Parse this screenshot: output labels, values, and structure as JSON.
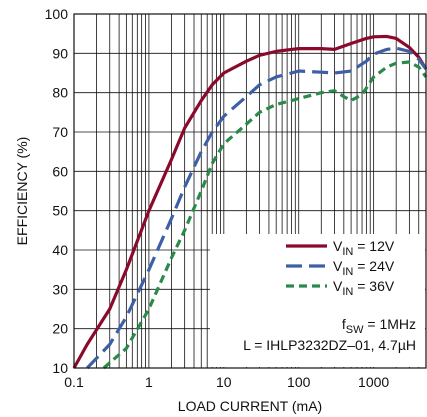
{
  "chart_data": {
    "type": "line",
    "title": "",
    "xlabel": "LOAD CURRENT (mA)",
    "ylabel": "EFFICIENCY (%)",
    "xscale": "log",
    "xlim": [
      0.1,
      5000
    ],
    "ylim": [
      10,
      100
    ],
    "grid": true,
    "legend_position": "lower-right",
    "x_ticks": [
      {
        "value": 0.1,
        "label": "0.1"
      },
      {
        "value": 1,
        "label": "1"
      },
      {
        "value": 10,
        "label": "10"
      },
      {
        "value": 100,
        "label": "100"
      },
      {
        "value": 1000,
        "label": "1000"
      }
    ],
    "y_ticks": [
      {
        "value": 10,
        "label": "10"
      },
      {
        "value": 20,
        "label": "20"
      },
      {
        "value": 30,
        "label": "30"
      },
      {
        "value": 40,
        "label": "40"
      },
      {
        "value": 50,
        "label": "50"
      },
      {
        "value": 60,
        "label": "60"
      },
      {
        "value": 70,
        "label": "70"
      },
      {
        "value": 80,
        "label": "80"
      },
      {
        "value": 90,
        "label": "90"
      },
      {
        "value": 100,
        "label": "100"
      }
    ],
    "series": [
      {
        "name": "VIN = 12V",
        "legend_main": "V",
        "legend_sub": "IN",
        "legend_rest": " = 12V",
        "color": "#8b0a2b",
        "dash": "solid",
        "points": [
          [
            0.1,
            10
          ],
          [
            0.15,
            16
          ],
          [
            0.3,
            25
          ],
          [
            0.5,
            35
          ],
          [
            1,
            50
          ],
          [
            2,
            63
          ],
          [
            3,
            71
          ],
          [
            5,
            78
          ],
          [
            7,
            82
          ],
          [
            10,
            85
          ],
          [
            20,
            88
          ],
          [
            30,
            89.5
          ],
          [
            50,
            90.5
          ],
          [
            80,
            91
          ],
          [
            100,
            91.2
          ],
          [
            200,
            91.2
          ],
          [
            300,
            91
          ],
          [
            500,
            92.5
          ],
          [
            800,
            93.8
          ],
          [
            1000,
            94.2
          ],
          [
            1500,
            94.3
          ],
          [
            2000,
            93.8
          ],
          [
            3000,
            91.5
          ],
          [
            4000,
            89
          ],
          [
            5000,
            86
          ]
        ]
      },
      {
        "name": "VIN = 24V",
        "legend_main": "V",
        "legend_sub": "IN",
        "legend_rest": " = 24V",
        "color": "#3d5fa6",
        "dash": "long-dash",
        "points": [
          [
            0.15,
            10
          ],
          [
            0.3,
            16
          ],
          [
            0.5,
            23
          ],
          [
            1,
            35
          ],
          [
            2,
            48
          ],
          [
            3,
            56
          ],
          [
            5,
            65
          ],
          [
            7,
            70
          ],
          [
            10,
            74
          ],
          [
            20,
            79
          ],
          [
            30,
            82
          ],
          [
            50,
            84
          ],
          [
            80,
            85
          ],
          [
            100,
            85.5
          ],
          [
            200,
            85.2
          ],
          [
            300,
            85
          ],
          [
            500,
            85.5
          ],
          [
            800,
            88
          ],
          [
            1000,
            89.8
          ],
          [
            1500,
            91
          ],
          [
            2000,
            91.3
          ],
          [
            3000,
            90.5
          ],
          [
            4000,
            88.5
          ],
          [
            5000,
            86
          ]
        ]
      },
      {
        "name": "VIN = 36V",
        "legend_main": "V",
        "legend_sub": "IN",
        "legend_rest": " = 36V",
        "color": "#2a8a4a",
        "dash": "short-dash",
        "points": [
          [
            0.25,
            10
          ],
          [
            0.5,
            15
          ],
          [
            1,
            25
          ],
          [
            2,
            38
          ],
          [
            3,
            45
          ],
          [
            5,
            55
          ],
          [
            7,
            62
          ],
          [
            10,
            67
          ],
          [
            20,
            72
          ],
          [
            30,
            75
          ],
          [
            50,
            77
          ],
          [
            80,
            78
          ],
          [
            100,
            78.5
          ],
          [
            200,
            80
          ],
          [
            300,
            80.5
          ],
          [
            400,
            79
          ],
          [
            500,
            78
          ],
          [
            700,
            79.5
          ],
          [
            1000,
            84
          ],
          [
            1500,
            86.5
          ],
          [
            2000,
            87.5
          ],
          [
            3000,
            87.8
          ],
          [
            4000,
            86.5
          ],
          [
            5000,
            84
          ]
        ]
      }
    ],
    "annotations": [
      {
        "main": "f",
        "sub": "SW",
        "rest": " = 1MHz"
      },
      {
        "main": "L = IHLP3232DZ–01, 4.7µH"
      }
    ]
  }
}
